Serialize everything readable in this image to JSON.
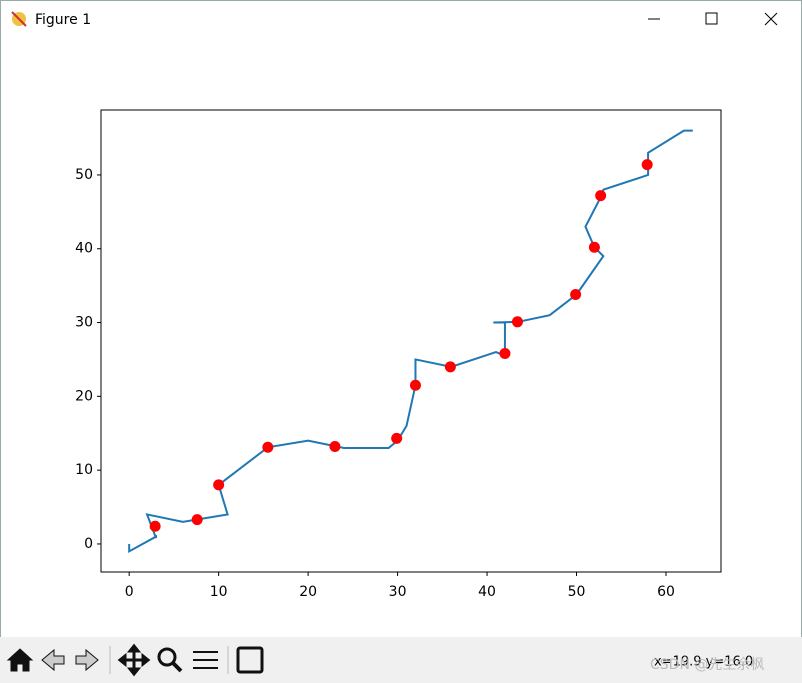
{
  "window": {
    "title": "Figure 1",
    "status": "x=19.9 y=16.0",
    "watermark": "CSDN @先生余枫"
  },
  "chart_data": {
    "type": "line",
    "xlim": [
      -3.15,
      66.15
    ],
    "ylim": [
      -3.8,
      58.8
    ],
    "xticks": [
      0,
      10,
      20,
      30,
      40,
      50,
      60
    ],
    "yticks": [
      0,
      10,
      20,
      30,
      40,
      50
    ],
    "series": [
      {
        "color": "#1f77b4",
        "style": "line",
        "x": [
          0,
          0,
          3,
          3,
          2,
          6,
          11,
          10,
          15.5,
          20,
          24,
          29,
          30,
          31,
          32,
          32,
          36,
          41,
          42,
          42,
          40.7,
          43.5,
          47,
          50,
          53,
          52,
          51,
          52.8,
          53,
          58,
          58,
          62,
          63
        ],
        "values": [
          0,
          -1,
          1,
          0.8,
          4,
          3,
          4,
          8,
          13.1,
          14,
          13,
          13,
          14,
          16,
          21.5,
          25,
          24,
          26,
          25.5,
          30,
          30,
          30.1,
          31,
          33.8,
          39,
          40.2,
          43,
          47.2,
          48,
          50,
          53,
          56,
          56
        ]
      },
      {
        "color": "#ff0000",
        "style": "markers",
        "x": [
          2.9,
          7.6,
          10,
          15.5,
          23,
          29.9,
          32,
          35.9,
          42,
          43.4,
          49.9,
          52,
          52.7,
          57.9
        ],
        "values": [
          2.4,
          3.3,
          8,
          13.1,
          13.2,
          14.3,
          21.5,
          24,
          25.8,
          30.1,
          33.8,
          40.2,
          47.2,
          51.4
        ]
      }
    ]
  }
}
